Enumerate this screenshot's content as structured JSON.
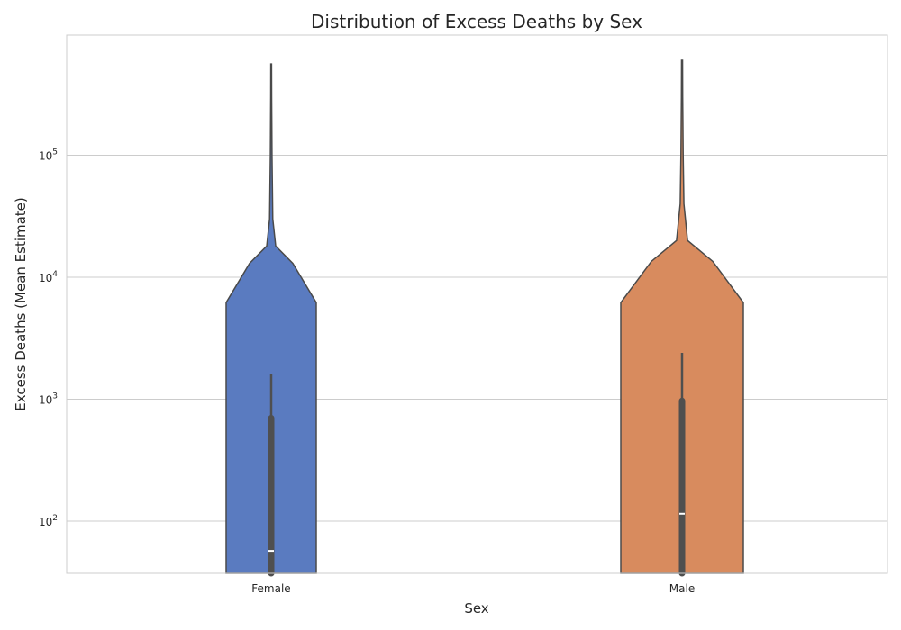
{
  "chart_data": {
    "type": "violin",
    "title": "Distribution of Excess Deaths by Sex",
    "xlabel": "Sex",
    "ylabel": "Excess Deaths (Mean Estimate)",
    "y_scale": "log",
    "ylim": [
      36,
      900000
    ],
    "y_ticks": [
      {
        "value": 100,
        "base": "10",
        "exp": "2"
      },
      {
        "value": 1000,
        "base": "10",
        "exp": "3"
      },
      {
        "value": 10000,
        "base": "10",
        "exp": "4"
      },
      {
        "value": 100000,
        "base": "10",
        "exp": "5"
      }
    ],
    "grid": true,
    "categories": [
      "Female",
      "Male"
    ],
    "series": [
      {
        "category": "Female",
        "color": "#5a7bc0",
        "median": 57,
        "q1": 36,
        "q3": 700,
        "whisker_high": 1600,
        "max": 560000,
        "density": [
          {
            "y": 36,
            "w": 1.0
          },
          {
            "y": 6200,
            "w": 1.0
          },
          {
            "y": 13000,
            "w": 0.48
          },
          {
            "y": 18000,
            "w": 0.1
          },
          {
            "y": 30000,
            "w": 0.035
          },
          {
            "y": 100000,
            "w": 0.018
          },
          {
            "y": 300000,
            "w": 0.01
          },
          {
            "y": 560000,
            "w": 0.008
          }
        ]
      },
      {
        "category": "Male",
        "color": "#d88b5e",
        "median": 115,
        "q1": 36,
        "q3": 970,
        "whisker_high": 2400,
        "max": 600000,
        "density": [
          {
            "y": 36,
            "w": 1.0
          },
          {
            "y": 6200,
            "w": 1.0
          },
          {
            "y": 13500,
            "w": 0.5
          },
          {
            "y": 20000,
            "w": 0.09
          },
          {
            "y": 40000,
            "w": 0.03
          },
          {
            "y": 100000,
            "w": 0.018
          },
          {
            "y": 300000,
            "w": 0.01
          },
          {
            "y": 600000,
            "w": 0.008
          }
        ]
      }
    ]
  }
}
